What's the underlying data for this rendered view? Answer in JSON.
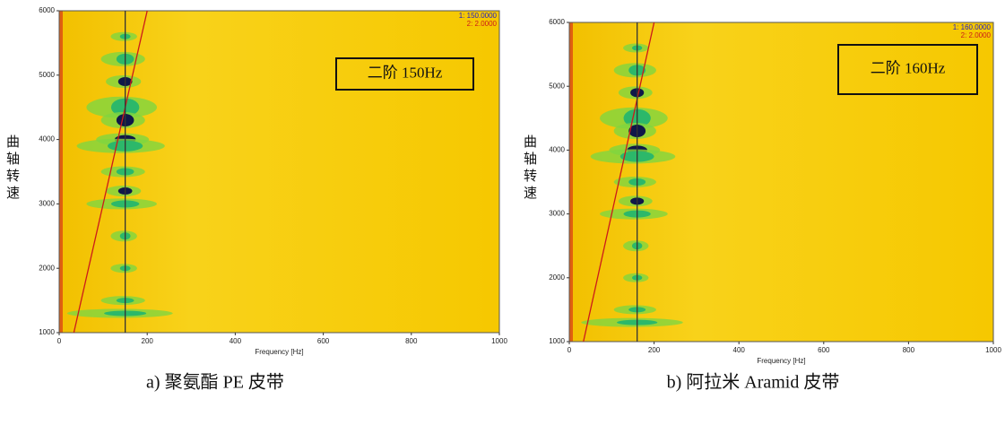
{
  "chart_data": [
    {
      "type": "spectrogram",
      "caption": "a) 聚氨酯 PE 皮带",
      "y_label": "曲轴转速",
      "x_label": "Frequency [Hz]",
      "annotation": "二阶 150Hz",
      "cursor": {
        "value": 150,
        "label": "1: 150.0000",
        "color": "#1a1acc"
      },
      "order": {
        "value": 2,
        "label": "2: 2.0000",
        "color": "#cc1a1a"
      },
      "xlim": [
        0,
        1000
      ],
      "xticks": [
        0,
        200,
        400,
        600,
        800,
        1000
      ],
      "ylim": [
        1000,
        6000
      ],
      "yticks": [
        1000,
        2000,
        3000,
        4000,
        5000,
        6000
      ]
    },
    {
      "type": "spectrogram",
      "caption": "b) 阿拉米 Aramid 皮带",
      "y_label": "曲轴转速",
      "x_label": "Frequency [Hz]",
      "annotation": "二阶 160Hz",
      "cursor": {
        "value": 160,
        "label": "1: 160.0000",
        "color": "#1a1acc"
      },
      "order": {
        "value": 2,
        "label": "2: 2.0000",
        "color": "#cc1a1a"
      },
      "xlim": [
        0,
        1000
      ],
      "xticks": [
        0,
        200,
        400,
        600,
        800,
        1000
      ],
      "ylim": [
        1000,
        6000
      ],
      "yticks": [
        1000,
        2000,
        3000,
        4000,
        5000,
        6000
      ]
    }
  ]
}
